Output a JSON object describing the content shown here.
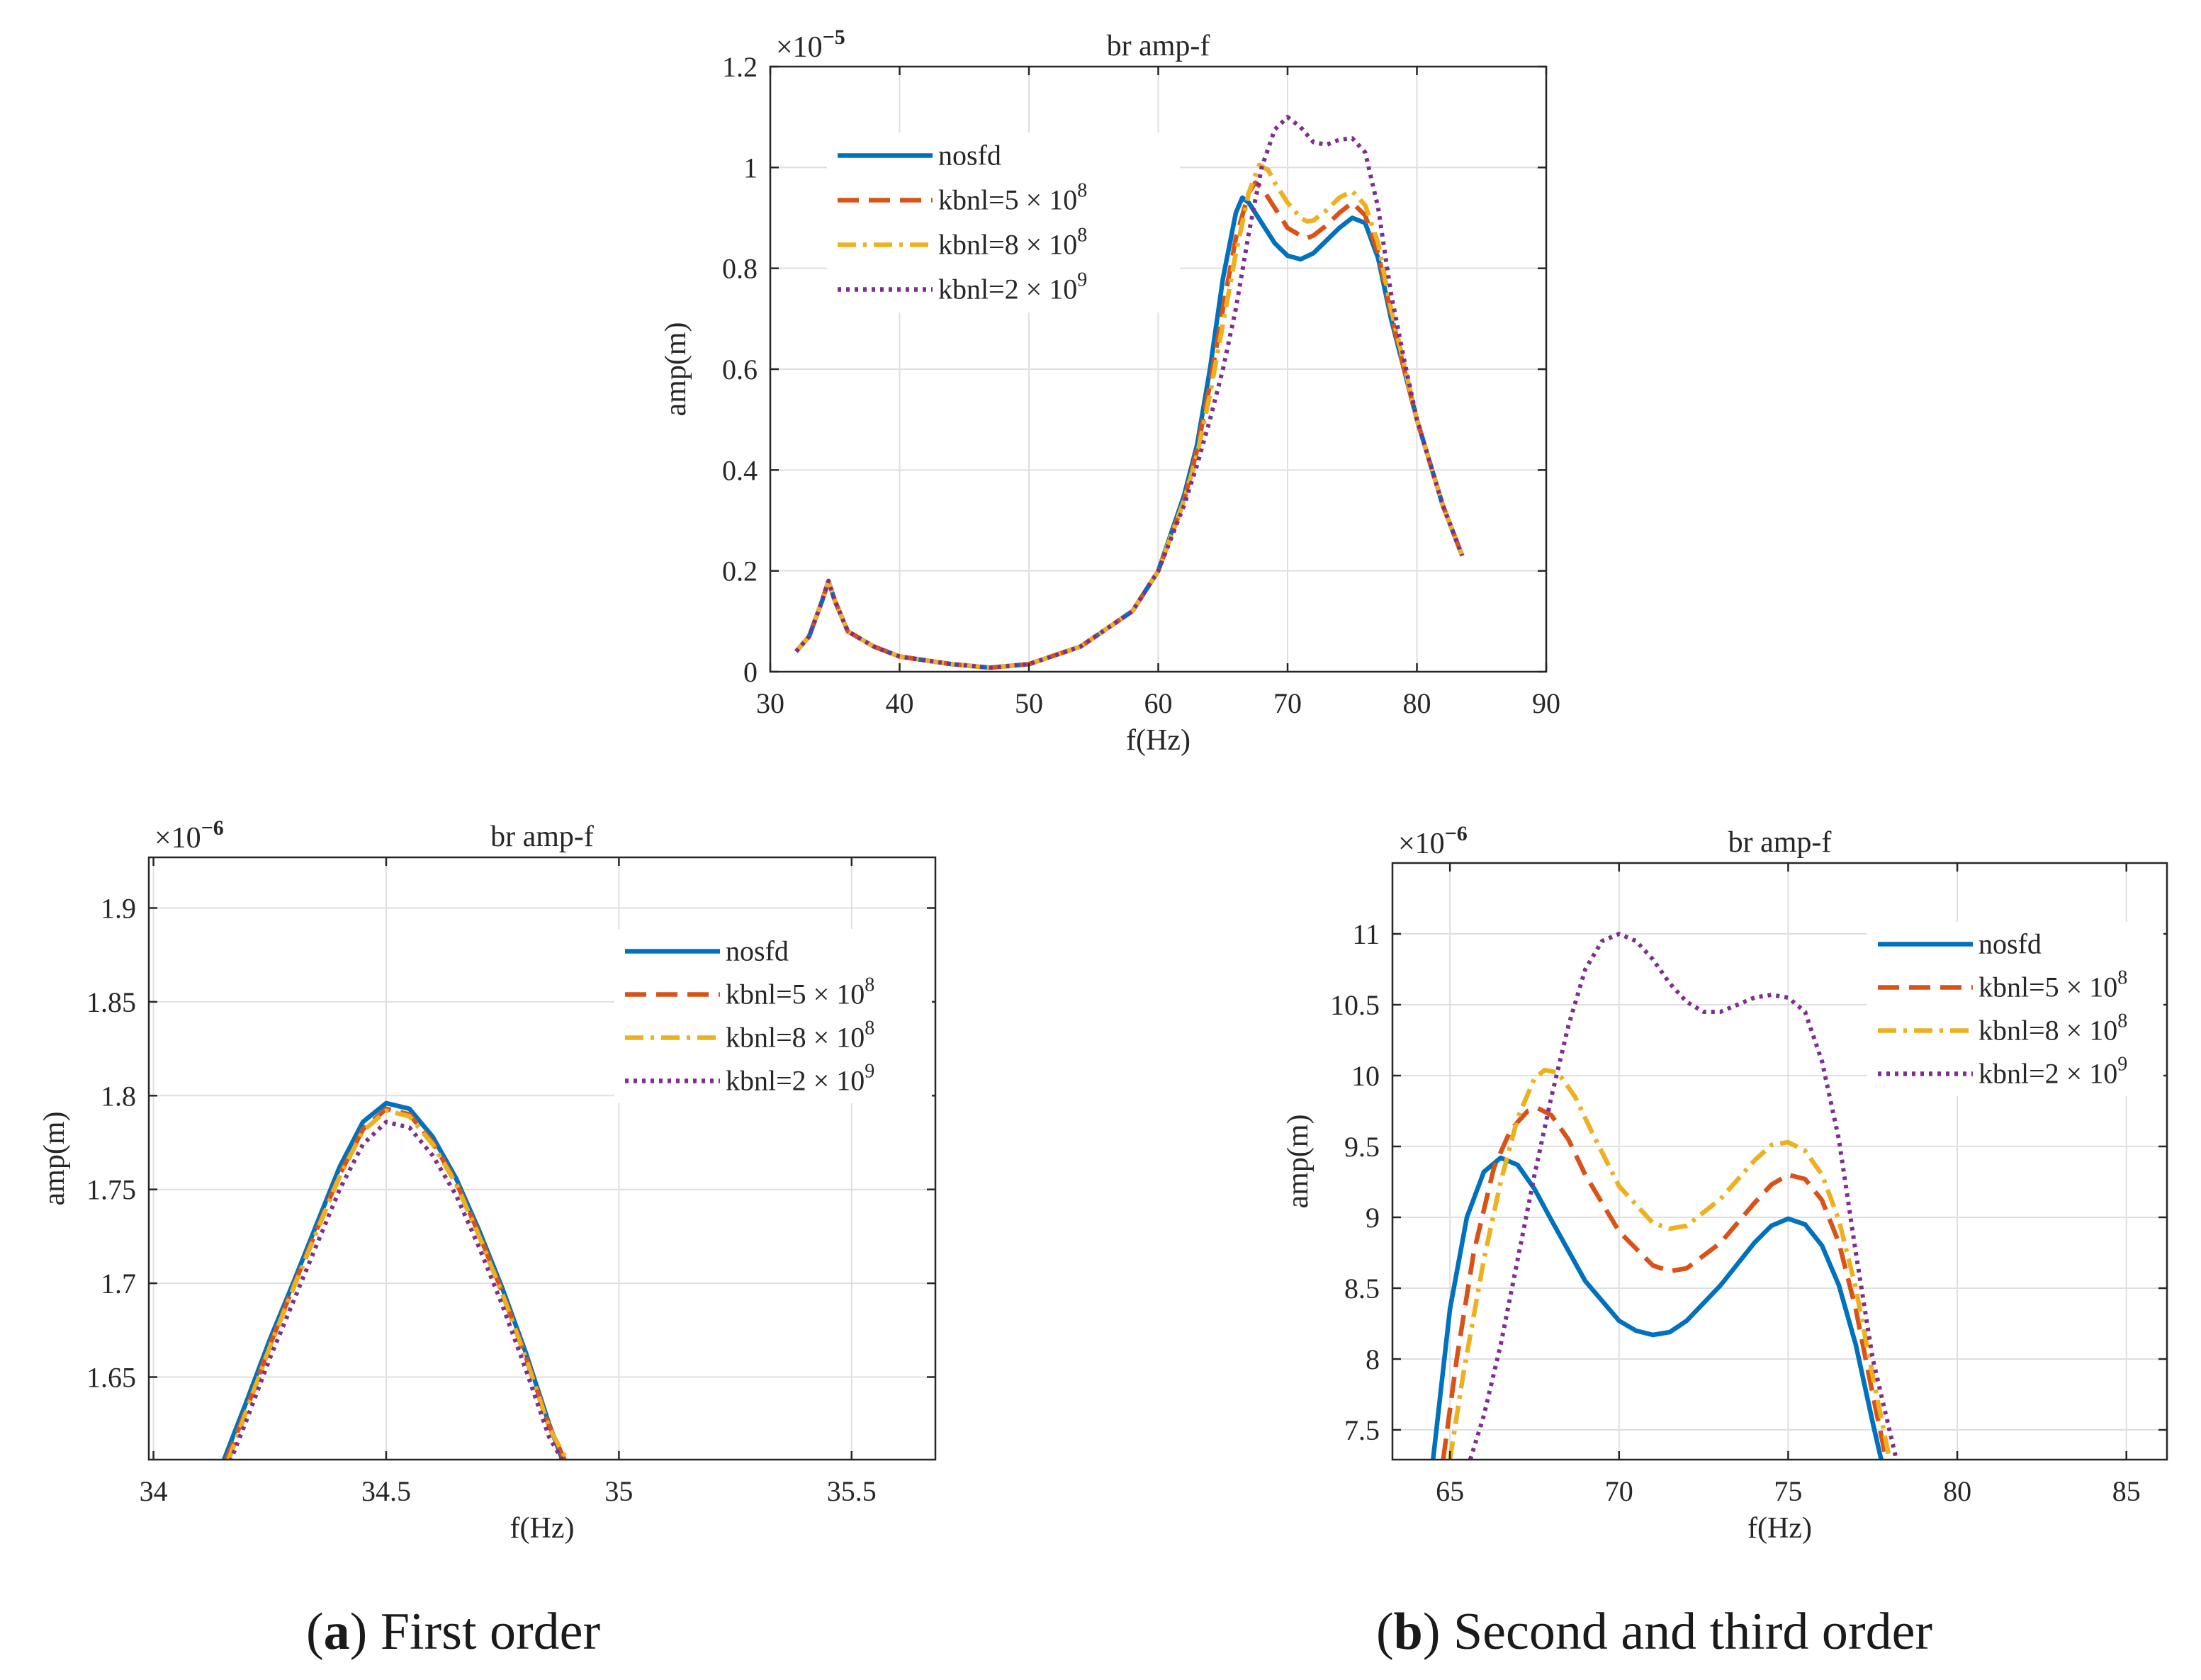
{
  "legend_entries": [
    "nosfd",
    "kbnl=5 × 10",
    "kbnl=8 × 10",
    "kbnl=2 × 10"
  ],
  "legend_exponents": [
    "",
    "8",
    "8",
    "9"
  ],
  "series_colors": [
    "#0072BD",
    "#D95319",
    "#EDB120",
    "#7E2F8E"
  ],
  "series_styles": [
    "solid",
    "dashed",
    "dashdot",
    "dotted"
  ],
  "captions": {
    "a_letter": "a",
    "a_text": " First order",
    "b_letter": "b",
    "b_text": " Second and third order"
  },
  "chart_data": [
    {
      "type": "line",
      "title": "br amp-f",
      "xlabel": "f(Hz)",
      "ylabel": "amp(m)",
      "y_multiplier": "×10",
      "y_multiplier_exp": "−5",
      "xlim": [
        30,
        90
      ],
      "ylim": [
        0,
        1.2
      ],
      "xticks": [
        30,
        40,
        50,
        60,
        70,
        80,
        90
      ],
      "yticks": [
        0,
        0.2,
        0.4,
        0.6,
        0.8,
        1,
        1.2
      ],
      "ytick_labels": [
        "0",
        "0.2",
        "0.4",
        "0.6",
        "0.8",
        "1",
        "1.2"
      ],
      "grid": true,
      "legend_position": "upper-left",
      "series": [
        {
          "name": "nosfd",
          "x": [
            32,
            33,
            34,
            34.5,
            35,
            36,
            38,
            40,
            44,
            47,
            50,
            54,
            58,
            60,
            62,
            63,
            64,
            65,
            66,
            66.5,
            67,
            68,
            69,
            70,
            71,
            72,
            73,
            74,
            75,
            76,
            77,
            78,
            79,
            80,
            82,
            83.5
          ],
          "y": [
            0.04,
            0.07,
            0.14,
            0.18,
            0.14,
            0.08,
            0.05,
            0.03,
            0.015,
            0.008,
            0.015,
            0.05,
            0.12,
            0.2,
            0.35,
            0.45,
            0.6,
            0.78,
            0.91,
            0.94,
            0.93,
            0.89,
            0.85,
            0.825,
            0.818,
            0.83,
            0.855,
            0.88,
            0.9,
            0.89,
            0.82,
            0.7,
            0.6,
            0.5,
            0.33,
            0.23
          ]
        },
        {
          "name": "kbnl=5 × 10^8",
          "x": [
            32,
            33,
            34,
            34.5,
            35,
            36,
            38,
            40,
            44,
            47,
            50,
            54,
            58,
            60,
            62,
            63,
            64,
            65,
            66,
            67,
            67.5,
            68,
            69,
            70,
            71,
            71.5,
            72,
            73,
            74,
            75,
            76,
            77,
            78,
            79,
            80,
            82,
            83.5
          ],
          "y": [
            0.04,
            0.07,
            0.14,
            0.18,
            0.14,
            0.08,
            0.05,
            0.03,
            0.015,
            0.008,
            0.015,
            0.05,
            0.12,
            0.2,
            0.34,
            0.44,
            0.57,
            0.72,
            0.86,
            0.95,
            0.97,
            0.96,
            0.92,
            0.88,
            0.865,
            0.86,
            0.865,
            0.885,
            0.91,
            0.93,
            0.905,
            0.83,
            0.71,
            0.6,
            0.5,
            0.33,
            0.23
          ]
        },
        {
          "name": "kbnl=8 × 10^8",
          "x": [
            32,
            33,
            34,
            34.5,
            35,
            36,
            38,
            40,
            44,
            47,
            50,
            54,
            58,
            60,
            62,
            63,
            64,
            65,
            66,
            67,
            67.8,
            68.5,
            69,
            70,
            71,
            71.5,
            72,
            73,
            74,
            75,
            76,
            77,
            78,
            79,
            80,
            82,
            83.5
          ],
          "y": [
            0.04,
            0.07,
            0.14,
            0.18,
            0.14,
            0.08,
            0.05,
            0.03,
            0.015,
            0.008,
            0.015,
            0.05,
            0.12,
            0.2,
            0.34,
            0.43,
            0.55,
            0.69,
            0.83,
            0.95,
            1.005,
            0.995,
            0.97,
            0.93,
            0.9,
            0.893,
            0.895,
            0.915,
            0.94,
            0.953,
            0.925,
            0.85,
            0.72,
            0.61,
            0.5,
            0.33,
            0.23
          ]
        },
        {
          "name": "kbnl=2 × 10^9",
          "x": [
            32,
            33,
            34,
            34.5,
            35,
            36,
            38,
            40,
            44,
            47,
            50,
            54,
            58,
            60,
            62,
            63,
            64,
            65,
            66,
            67,
            68,
            69,
            70,
            71,
            72,
            73,
            74,
            75,
            76,
            77,
            78,
            79,
            80,
            82,
            83.5
          ],
          "y": [
            0.04,
            0.07,
            0.14,
            0.18,
            0.14,
            0.08,
            0.05,
            0.03,
            0.015,
            0.008,
            0.015,
            0.05,
            0.12,
            0.2,
            0.33,
            0.41,
            0.5,
            0.6,
            0.72,
            0.87,
            1.0,
            1.075,
            1.1,
            1.08,
            1.05,
            1.045,
            1.055,
            1.058,
            1.03,
            0.92,
            0.75,
            0.62,
            0.5,
            0.33,
            0.23
          ]
        }
      ]
    },
    {
      "type": "line",
      "title": "br amp-f",
      "xlabel": "f(Hz)",
      "ylabel": "amp(m)",
      "y_multiplier": "×10",
      "y_multiplier_exp": "−6",
      "xlim": [
        33.99,
        35.68
      ],
      "ylim": [
        1.606,
        1.927
      ],
      "xticks": [
        34,
        34.5,
        35,
        35.5
      ],
      "yticks": [
        1.65,
        1.7,
        1.75,
        1.8,
        1.85,
        1.9
      ],
      "ytick_labels": [
        "1.65",
        "1.7",
        "1.75",
        "1.8",
        "1.85",
        "1.9"
      ],
      "grid": true,
      "legend_position": "upper-right",
      "series": [
        {
          "name": "nosfd",
          "x": [
            34.15,
            34.2,
            34.25,
            34.3,
            34.35,
            34.4,
            34.45,
            34.5,
            34.55,
            34.6,
            34.65,
            34.7,
            34.75,
            34.8,
            34.85,
            34.88
          ],
          "y": [
            1.605,
            1.637,
            1.67,
            1.7,
            1.731,
            1.762,
            1.786,
            1.796,
            1.793,
            1.778,
            1.756,
            1.728,
            1.697,
            1.663,
            1.625,
            1.605
          ]
        },
        {
          "name": "kbnl=5 × 10^8",
          "x": [
            34.155,
            34.2,
            34.25,
            34.3,
            34.35,
            34.4,
            34.45,
            34.5,
            34.55,
            34.6,
            34.65,
            34.7,
            34.75,
            34.8,
            34.85,
            34.885
          ],
          "y": [
            1.605,
            1.633,
            1.667,
            1.698,
            1.728,
            1.758,
            1.782,
            1.793,
            1.79,
            1.775,
            1.754,
            1.726,
            1.695,
            1.661,
            1.624,
            1.605
          ]
        },
        {
          "name": "kbnl=8 × 10^8",
          "x": [
            34.16,
            34.2,
            34.25,
            34.3,
            34.35,
            34.4,
            34.45,
            34.5,
            34.55,
            34.6,
            34.65,
            34.7,
            34.75,
            34.8,
            34.85,
            34.89
          ],
          "y": [
            1.605,
            1.632,
            1.666,
            1.697,
            1.727,
            1.757,
            1.781,
            1.792,
            1.789,
            1.774,
            1.753,
            1.725,
            1.694,
            1.66,
            1.623,
            1.605
          ]
        },
        {
          "name": "kbnl=2 × 10^9",
          "x": [
            34.165,
            34.2,
            34.25,
            34.3,
            34.35,
            34.4,
            34.45,
            34.5,
            34.55,
            34.6,
            34.65,
            34.7,
            34.75,
            34.8,
            34.85,
            34.88
          ],
          "y": [
            1.605,
            1.627,
            1.66,
            1.69,
            1.72,
            1.75,
            1.774,
            1.786,
            1.783,
            1.768,
            1.747,
            1.719,
            1.688,
            1.654,
            1.618,
            1.605
          ]
        }
      ]
    },
    {
      "type": "line",
      "title": "br amp-f",
      "xlabel": "f(Hz)",
      "ylabel": "amp(m)",
      "y_multiplier": "×10",
      "y_multiplier_exp": "−6",
      "xlim": [
        63.3,
        86.2
      ],
      "ylim": [
        7.29,
        11.5
      ],
      "xticks": [
        65,
        70,
        75,
        80,
        85
      ],
      "yticks": [
        7.5,
        8,
        8.5,
        9,
        9.5,
        10,
        10.5,
        11
      ],
      "ytick_labels": [
        "7.5",
        "8",
        "8.5",
        "9",
        "9.5",
        "10",
        "10.5",
        "11"
      ],
      "grid": true,
      "legend_position": "upper-right",
      "series": [
        {
          "name": "nosfd",
          "x": [
            64.5,
            65,
            65.5,
            66,
            66.5,
            67,
            67.5,
            68,
            69,
            70,
            70.5,
            71,
            71.5,
            72,
            73,
            74,
            74.5,
            75,
            75.5,
            76,
            76.5,
            77,
            77.5,
            77.75
          ],
          "y": [
            7.29,
            8.35,
            9.0,
            9.32,
            9.42,
            9.37,
            9.2,
            8.98,
            8.55,
            8.27,
            8.2,
            8.17,
            8.19,
            8.27,
            8.52,
            8.82,
            8.94,
            8.99,
            8.95,
            8.8,
            8.52,
            8.1,
            7.55,
            7.29
          ]
        },
        {
          "name": "kbnl=5 × 10^8",
          "x": [
            64.8,
            65.2,
            65.7,
            66.3,
            66.8,
            67.3,
            67.6,
            68.0,
            68.5,
            69,
            70,
            71,
            71.5,
            72,
            73,
            74,
            74.5,
            75,
            75.5,
            76,
            76.5,
            77,
            77.5,
            77.9
          ],
          "y": [
            7.29,
            8.0,
            8.75,
            9.35,
            9.62,
            9.75,
            9.77,
            9.72,
            9.55,
            9.3,
            8.9,
            8.66,
            8.62,
            8.64,
            8.82,
            9.1,
            9.23,
            9.3,
            9.27,
            9.12,
            8.82,
            8.35,
            7.75,
            7.29
          ]
        },
        {
          "name": "kbnl=8 × 10^8",
          "x": [
            65.0,
            65.4,
            66.0,
            66.5,
            67.0,
            67.5,
            67.8,
            68.2,
            68.7,
            69.2,
            70,
            71,
            71.5,
            72,
            73,
            74,
            74.5,
            75,
            75.5,
            76,
            76.5,
            77,
            77.5,
            78.0
          ],
          "y": [
            7.29,
            7.9,
            8.7,
            9.25,
            9.7,
            9.98,
            10.04,
            10.02,
            9.85,
            9.6,
            9.22,
            8.96,
            8.92,
            8.94,
            9.13,
            9.4,
            9.51,
            9.53,
            9.47,
            9.3,
            8.98,
            8.5,
            7.88,
            7.29
          ]
        },
        {
          "name": "kbnl=2 × 10^9",
          "x": [
            65.6,
            66,
            66.5,
            67,
            67.5,
            68,
            68.5,
            69,
            69.5,
            70,
            70.5,
            71,
            71.5,
            72,
            72.5,
            73,
            73.5,
            74,
            74.5,
            75,
            75.5,
            76,
            76.5,
            77,
            77.5,
            78.2
          ],
          "y": [
            7.29,
            7.6,
            8.1,
            8.7,
            9.3,
            9.85,
            10.35,
            10.75,
            10.95,
            11.0,
            10.95,
            10.82,
            10.65,
            10.52,
            10.45,
            10.45,
            10.5,
            10.55,
            10.57,
            10.55,
            10.45,
            10.1,
            9.55,
            8.75,
            8.0,
            7.29
          ]
        }
      ]
    }
  ]
}
